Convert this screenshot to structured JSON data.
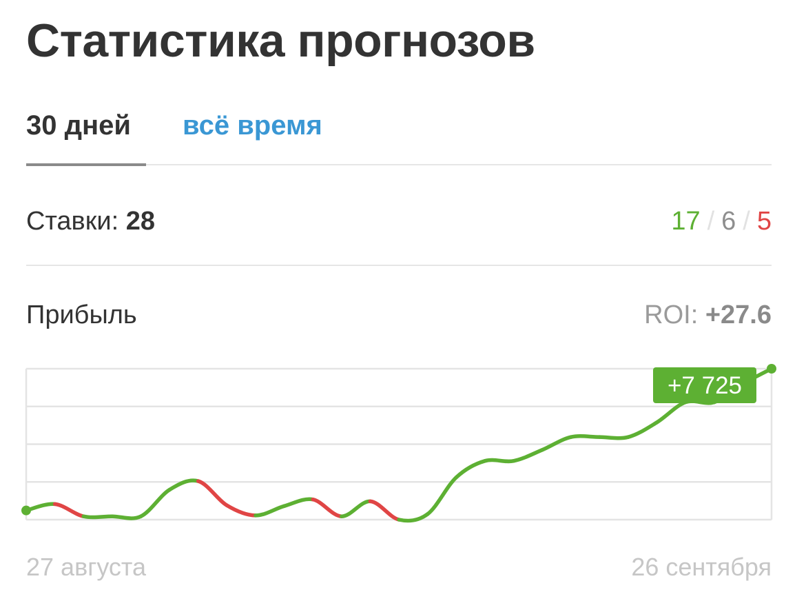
{
  "title": "Статистика прогнозов",
  "tabs": [
    {
      "label": "30 дней",
      "active": true
    },
    {
      "label": "всё время",
      "active": false
    }
  ],
  "bets": {
    "label": "Ставки:",
    "total": "28",
    "wins": "17",
    "draws": "6",
    "losses": "5",
    "separator": "/"
  },
  "profit": {
    "label": "Прибыль",
    "roi_label": "ROI:",
    "roi_value": "+27.6",
    "total_badge": "+7 725"
  },
  "colors": {
    "win": "#5db033",
    "draw": "#8e8e8e",
    "loss": "#e04545",
    "link": "#3a97d4",
    "grid": "#e4e4e4",
    "badge_bg": "#5db033"
  },
  "chart_data": {
    "type": "line",
    "xlabel": "",
    "ylabel": "",
    "x_start_label": "27 августа",
    "x_end_label": "26 сентября",
    "grid": true,
    "ylim": [
      -500,
      7725
    ],
    "y_gridlines": 4,
    "series": [
      {
        "values": [
          0,
          350,
          -320,
          -320,
          -320,
          1130,
          1600,
          280,
          -270,
          240,
          600,
          -320,
          500,
          -500,
          -200,
          1800,
          2700,
          2700,
          3300,
          4000,
          4000,
          4000,
          4800,
          5900,
          5900,
          6900,
          7725
        ]
      }
    ]
  }
}
